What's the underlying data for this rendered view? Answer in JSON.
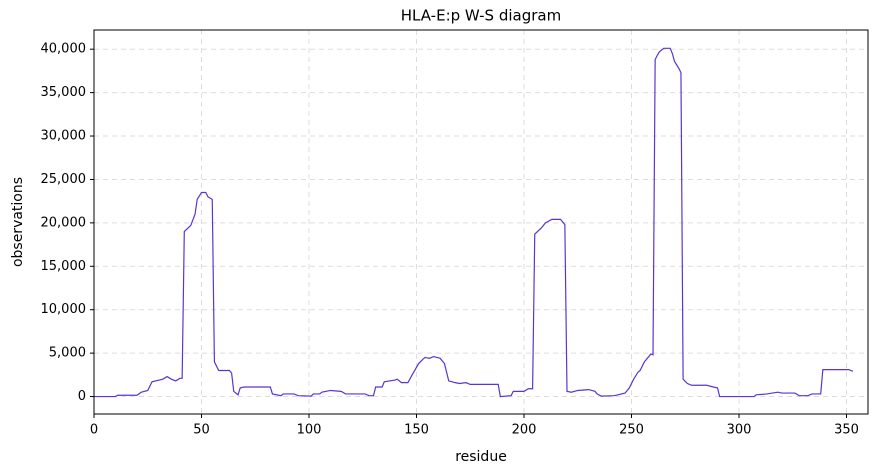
{
  "chart_data": {
    "type": "line",
    "title": "HLA-E:p W-S diagram",
    "x_label": "residue",
    "y_label": "observations",
    "color": "#5a35d0",
    "grid": true,
    "xlim": [
      0,
      360
    ],
    "xticks": [
      0,
      50,
      100,
      150,
      200,
      250,
      300,
      350
    ],
    "ylim": [
      -2010,
      42210
    ],
    "yticks": [
      0,
      {
        "value": 5000,
        "label": "5,000"
      },
      {
        "value": 10000,
        "label": "10,000"
      },
      {
        "value": 15000,
        "label": "15,000"
      },
      {
        "value": 20000,
        "label": "20,000"
      },
      {
        "value": 25000,
        "label": "25,000"
      },
      {
        "value": 30000,
        "label": "30,000"
      },
      {
        "value": 35000,
        "label": "35,000"
      },
      {
        "value": 40000,
        "label": "40,000"
      }
    ],
    "x": [
      0,
      10,
      11,
      20,
      22,
      25,
      27,
      32,
      34,
      36,
      38,
      40,
      41,
      42,
      45,
      47,
      48,
      50,
      52,
      53,
      55,
      56,
      58,
      63,
      64,
      65,
      67,
      68,
      70,
      82,
      83,
      87,
      88,
      93,
      95,
      101,
      102,
      105,
      106,
      110,
      115,
      117,
      126,
      128,
      130,
      131,
      134,
      135,
      140,
      141,
      143,
      146,
      148,
      151,
      153,
      154,
      156,
      158,
      161,
      163,
      165,
      168,
      170,
      173,
      175,
      188,
      189,
      194,
      195,
      200,
      202,
      204,
      205,
      208,
      210,
      213,
      217,
      219,
      220,
      222,
      225,
      230,
      233,
      234,
      236,
      242,
      247,
      249,
      251,
      253,
      254,
      256,
      259,
      260,
      261,
      262,
      263,
      265,
      268,
      269,
      270,
      272,
      273,
      274,
      276,
      278,
      285,
      288,
      290,
      291,
      307,
      308,
      313,
      318,
      320,
      326,
      328,
      332,
      334,
      338,
      339,
      351,
      353
    ],
    "values": [
      0,
      0,
      150,
      150,
      500,
      700,
      1700,
      2000,
      2300,
      2000,
      1800,
      2100,
      2100,
      19000,
      19700,
      21000,
      22700,
      23500,
      23500,
      23000,
      22700,
      4000,
      3000,
      3000,
      2700,
      600,
      200,
      1000,
      1100,
      1100,
      300,
      100,
      300,
      300,
      100,
      50,
      300,
      300,
      500,
      700,
      600,
      300,
      300,
      100,
      100,
      1100,
      1100,
      1700,
      1900,
      2000,
      1600,
      1600,
      2500,
      3800,
      4300,
      4500,
      4400,
      4600,
      4400,
      3800,
      1800,
      1600,
      1500,
      1600,
      1400,
      1400,
      0,
      100,
      600,
      600,
      900,
      900,
      18700,
      19400,
      20000,
      20400,
      20400,
      19800,
      600,
      500,
      700,
      800,
      600,
      300,
      50,
      100,
      400,
      1000,
      2000,
      2800,
      3000,
      4000,
      4900,
      4800,
      38800,
      39300,
      39700,
      40100,
      40100,
      39500,
      38600,
      37800,
      37300,
      2000,
      1500,
      1300,
      1300,
      1100,
      1000,
      0,
      0,
      200,
      300,
      500,
      400,
      400,
      100,
      100,
      300,
      300,
      3100,
      3100,
      2900
    ]
  }
}
